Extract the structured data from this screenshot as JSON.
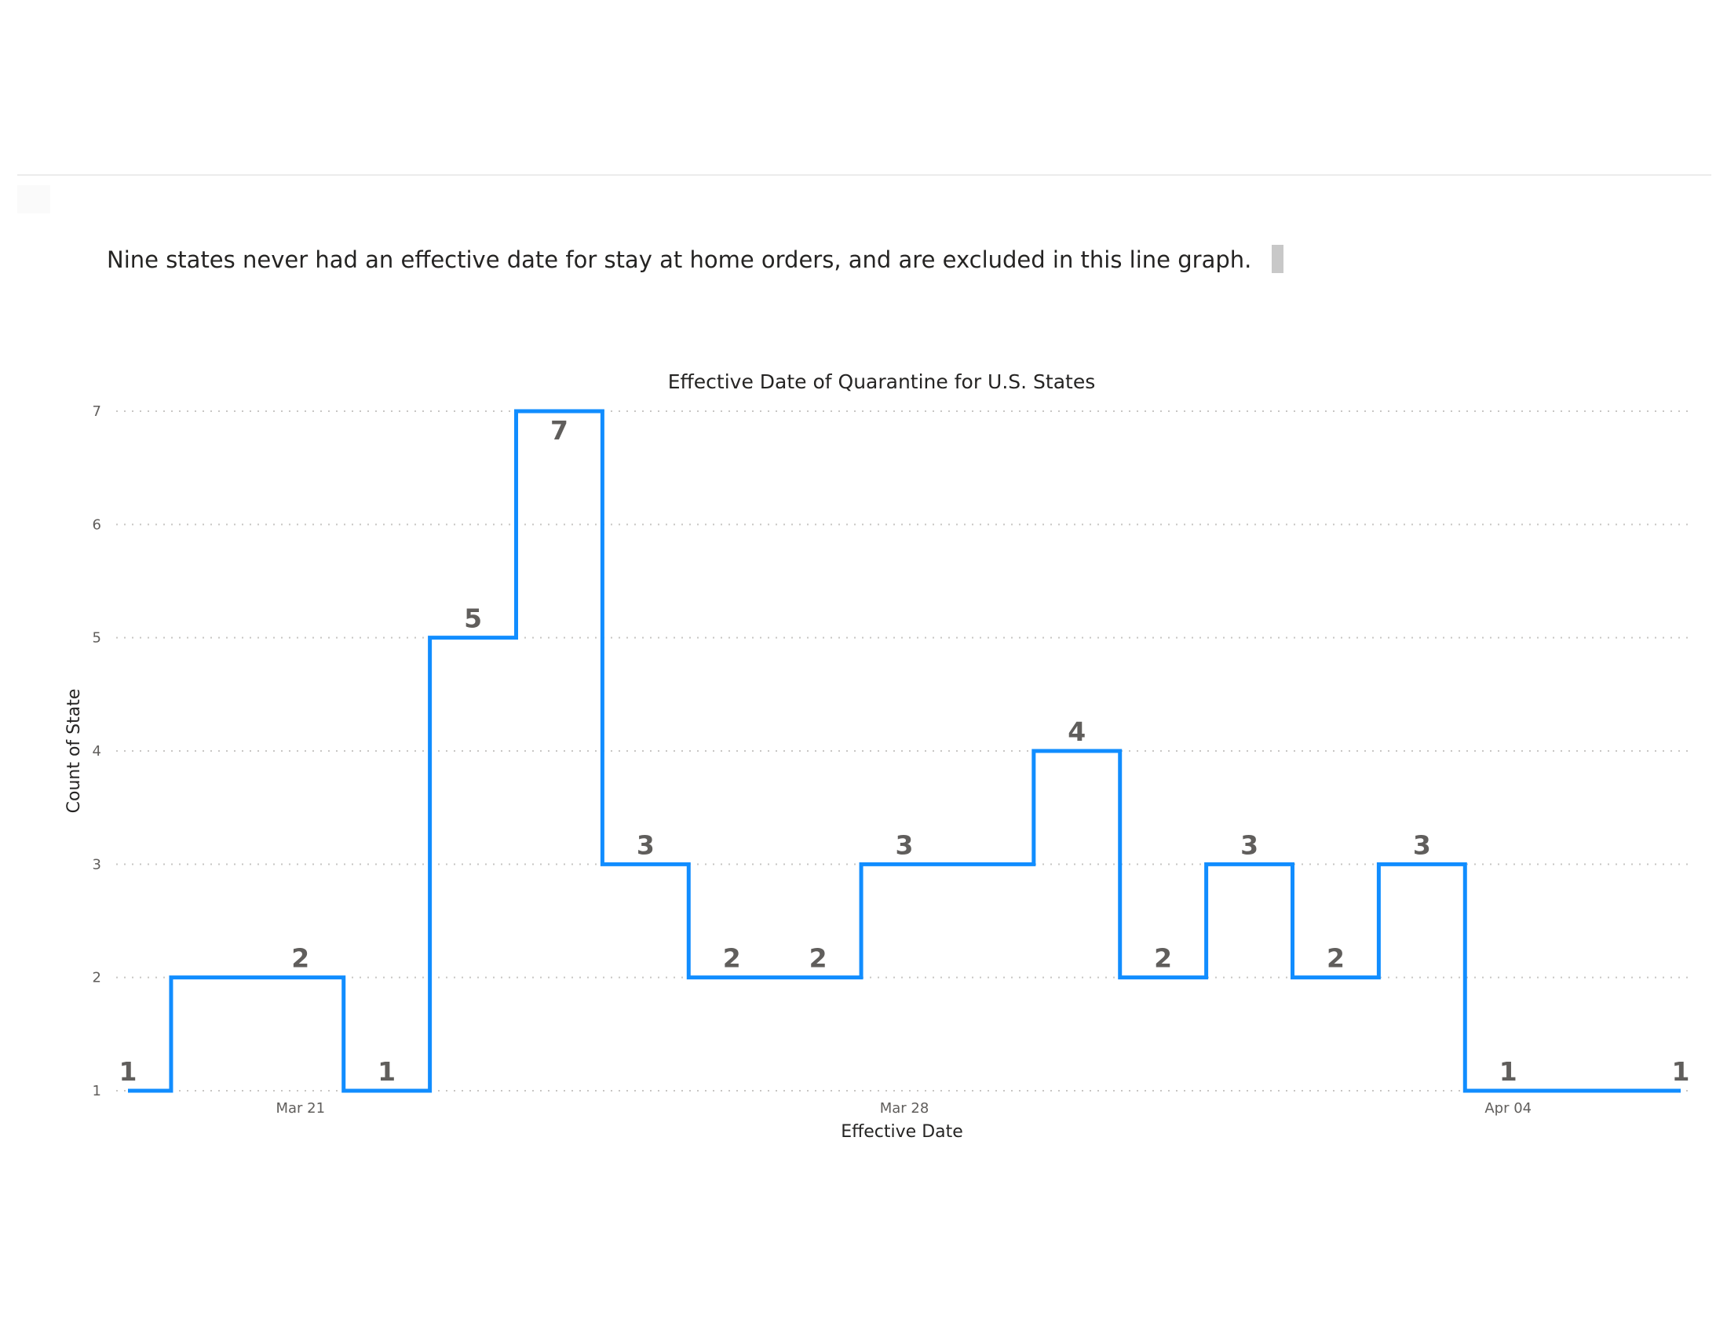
{
  "note": {
    "text": "Nine states never had an effective date for stay at home orders, and are excluded in this line graph."
  },
  "chart_data": {
    "type": "line",
    "line_style": "step",
    "title": "Effective Date of Quarantine for U.S. States",
    "xlabel": "Effective Date",
    "ylabel": "Count of State",
    "ylim": [
      1,
      7
    ],
    "yticks": [
      1,
      2,
      3,
      4,
      5,
      6,
      7
    ],
    "xlim": [
      "2020-03-19",
      "2020-04-06"
    ],
    "xticks": [
      {
        "date": "2020-03-21",
        "label": "Mar 21"
      },
      {
        "date": "2020-03-28",
        "label": "Mar 28"
      },
      {
        "date": "2020-04-04",
        "label": "Apr 04"
      }
    ],
    "grid": true,
    "line_color": "#118DFF",
    "series": [
      {
        "x": [
          "2020-03-19",
          "2020-03-20",
          "2020-03-21",
          "2020-03-22",
          "2020-03-23",
          "2020-03-24",
          "2020-03-25",
          "2020-03-26",
          "2020-03-27",
          "2020-03-28",
          "2020-03-29",
          "2020-03-30",
          "2020-03-31",
          "2020-04-01",
          "2020-04-02",
          "2020-04-03",
          "2020-04-04",
          "2020-04-05",
          "2020-04-06"
        ],
        "values": [
          1,
          2,
          2,
          1,
          5,
          7,
          3,
          2,
          2,
          3,
          3,
          4,
          2,
          3,
          2,
          3,
          1,
          1,
          1
        ],
        "labels": [
          "1",
          "",
          "2",
          "1",
          "5",
          "7",
          "3",
          "2",
          "2",
          "3",
          "",
          "4",
          "2",
          "3",
          "2",
          "3",
          "1",
          "",
          "1"
        ]
      }
    ]
  }
}
